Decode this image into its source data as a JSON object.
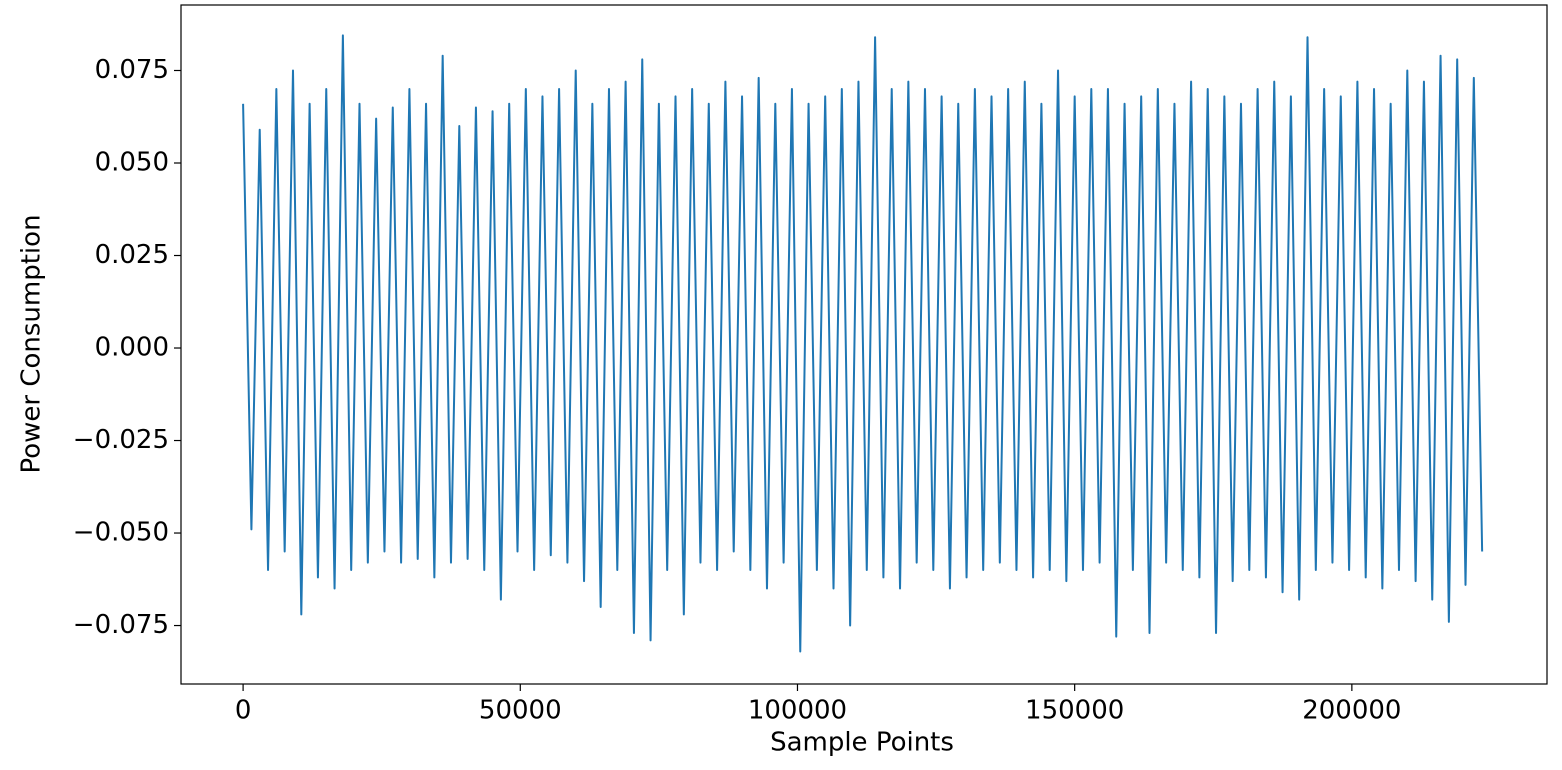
{
  "chart_data": {
    "type": "line",
    "xlabel": "Sample Points",
    "ylabel": "Power Consumption",
    "xlim": [
      -11200,
      235200
    ],
    "ylim": [
      -0.0908,
      0.0927
    ],
    "xticks": [
      0,
      50000,
      100000,
      150000,
      200000
    ],
    "yticks": [
      {
        "value": -0.075,
        "label": "−0.075"
      },
      {
        "value": -0.05,
        "label": "−0.050"
      },
      {
        "value": -0.025,
        "label": "−0.025"
      },
      {
        "value": 0,
        "label": "0.000"
      },
      {
        "value": 0.025,
        "label": "0.025"
      },
      {
        "value": 0.05,
        "label": "0.050"
      },
      {
        "value": 0.075,
        "label": "0.075"
      }
    ],
    "grid": false,
    "series": [
      {
        "color": "#1f77b4",
        "x": [
          0,
          1500,
          3000,
          4500,
          6000,
          7500,
          9000,
          10500,
          12000,
          13500,
          15000,
          16500,
          18000,
          19500,
          21000,
          22500,
          24000,
          25500,
          27000,
          28500,
          30000,
          31500,
          33000,
          34500,
          36000,
          37500,
          39000,
          40500,
          42000,
          43500,
          45000,
          46500,
          48000,
          49500,
          51000,
          52500,
          54000,
          55500,
          57000,
          58500,
          60000,
          61500,
          63000,
          64500,
          66000,
          67500,
          69000,
          70500,
          72000,
          73500,
          75000,
          76500,
          78000,
          79500,
          81000,
          82500,
          84000,
          85500,
          87000,
          88500,
          90000,
          91500,
          93000,
          94500,
          96000,
          97500,
          99000,
          100500,
          102000,
          103500,
          105000,
          106500,
          108000,
          109500,
          111000,
          112500,
          114000,
          115500,
          117000,
          118500,
          120000,
          121500,
          123000,
          124500,
          126000,
          127500,
          129000,
          130500,
          132000,
          133500,
          135000,
          136500,
          138000,
          139500,
          141000,
          142500,
          144000,
          145500,
          147000,
          148500,
          150000,
          151500,
          153000,
          154500,
          156000,
          157500,
          159000,
          160500,
          162000,
          163500,
          165000,
          166500,
          168000,
          169500,
          171000,
          172500,
          174000,
          175500,
          177000,
          178500,
          180000,
          181500,
          183000,
          184500,
          186000,
          187500,
          189000,
          190500,
          192000,
          193500,
          195000,
          196500,
          198000,
          199500,
          201000,
          202500,
          204000,
          205500,
          207000,
          208500,
          210000,
          211500,
          213000,
          214500,
          216000,
          217500,
          219000,
          220500,
          222000,
          223500
        ],
        "values": [
          0.066,
          -0.049,
          0.059,
          -0.06,
          0.07,
          -0.055,
          0.075,
          -0.072,
          0.066,
          -0.062,
          0.07,
          -0.065,
          0.0845,
          -0.06,
          0.066,
          -0.058,
          0.062,
          -0.055,
          0.065,
          -0.058,
          0.07,
          -0.057,
          0.066,
          -0.062,
          0.079,
          -0.058,
          0.06,
          -0.057,
          0.065,
          -0.06,
          0.064,
          -0.068,
          0.066,
          -0.055,
          0.07,
          -0.06,
          0.068,
          -0.056,
          0.07,
          -0.058,
          0.075,
          -0.063,
          0.066,
          -0.07,
          0.07,
          -0.06,
          0.072,
          -0.077,
          0.078,
          -0.079,
          0.066,
          -0.06,
          0.068,
          -0.072,
          0.07,
          -0.058,
          0.066,
          -0.06,
          0.072,
          -0.055,
          0.068,
          -0.06,
          0.073,
          -0.065,
          0.066,
          -0.058,
          0.07,
          -0.082,
          0.066,
          -0.06,
          0.068,
          -0.065,
          0.07,
          -0.075,
          0.072,
          -0.06,
          0.084,
          -0.062,
          0.07,
          -0.065,
          0.072,
          -0.058,
          0.07,
          -0.06,
          0.068,
          -0.065,
          0.066,
          -0.062,
          0.07,
          -0.06,
          0.068,
          -0.058,
          0.07,
          -0.06,
          0.072,
          -0.062,
          0.066,
          -0.06,
          0.075,
          -0.063,
          0.068,
          -0.06,
          0.07,
          -0.058,
          0.07,
          -0.078,
          0.066,
          -0.06,
          0.068,
          -0.077,
          0.07,
          -0.058,
          0.066,
          -0.06,
          0.072,
          -0.062,
          0.07,
          -0.077,
          0.068,
          -0.063,
          0.066,
          -0.06,
          0.07,
          -0.062,
          0.072,
          -0.066,
          0.068,
          -0.068,
          0.084,
          -0.06,
          0.07,
          -0.058,
          0.068,
          -0.06,
          0.072,
          -0.062,
          0.07,
          -0.065,
          0.066,
          -0.06,
          0.075,
          -0.063,
          0.072,
          -0.068,
          0.079,
          -0.074,
          0.078,
          -0.064,
          0.073,
          -0.055
        ]
      }
    ]
  }
}
